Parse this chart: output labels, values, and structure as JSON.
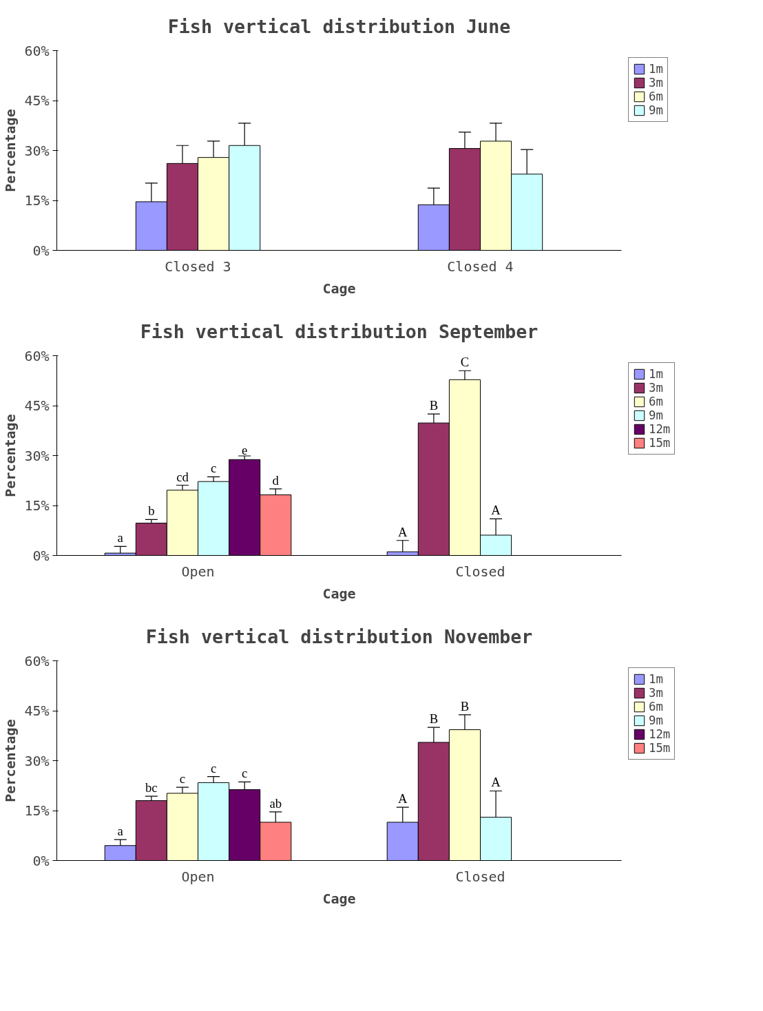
{
  "chart_data": [
    {
      "type": "bar",
      "title": "Fish vertical distribution June",
      "xlabel": "Cage",
      "ylabel": "Percentage",
      "categories": [
        "Closed 3",
        "Closed 4"
      ],
      "ylim": [
        0,
        60
      ],
      "yticks": [
        {
          "value": 0,
          "label": "0%"
        },
        {
          "value": 15,
          "label": "15%"
        },
        {
          "value": 30,
          "label": "30%"
        },
        {
          "value": 45,
          "label": "45%"
        },
        {
          "value": 60,
          "label": "60%"
        }
      ],
      "grid": false,
      "legend": "right",
      "series": [
        {
          "name": "1m",
          "color": "#9999ff",
          "values": [
            14.6,
            13.7
          ],
          "errors": [
            5.6,
            5.0
          ]
        },
        {
          "name": "3m",
          "color": "#993366",
          "values": [
            26.1,
            30.6
          ],
          "errors": [
            5.4,
            4.9
          ]
        },
        {
          "name": "6m",
          "color": "#ffffcc",
          "values": [
            27.9,
            32.8
          ],
          "errors": [
            4.9,
            5.4
          ]
        },
        {
          "name": "9m",
          "color": "#ccffff",
          "values": [
            31.5,
            22.9
          ],
          "errors": [
            6.7,
            7.4
          ]
        }
      ]
    },
    {
      "type": "bar",
      "title": "Fish vertical distribution September",
      "xlabel": "Cage",
      "ylabel": "Percentage",
      "categories": [
        "Open",
        "Closed"
      ],
      "ylim": [
        0,
        60
      ],
      "yticks": [
        {
          "value": 0,
          "label": "0%"
        },
        {
          "value": 15,
          "label": "15%"
        },
        {
          "value": 30,
          "label": "30%"
        },
        {
          "value": 45,
          "label": "45%"
        },
        {
          "value": 60,
          "label": "60%"
        }
      ],
      "grid": false,
      "legend": "right",
      "series": [
        {
          "name": "1m",
          "color": "#9999ff",
          "values": [
            0.7,
            1.1
          ],
          "errors": [
            2.0,
            3.4
          ]
        },
        {
          "name": "3m",
          "color": "#993366",
          "values": [
            9.7,
            39.8
          ],
          "errors": [
            1.1,
            2.7
          ]
        },
        {
          "name": "6m",
          "color": "#ffffcc",
          "values": [
            19.6,
            52.8
          ],
          "errors": [
            1.5,
            2.7
          ]
        },
        {
          "name": "9m",
          "color": "#ccffff",
          "values": [
            22.2,
            6.1
          ],
          "errors": [
            1.4,
            4.9
          ]
        },
        {
          "name": "12m",
          "color": "#660066",
          "values": [
            28.8,
            null
          ],
          "errors": [
            1.1,
            null
          ]
        },
        {
          "name": "15m",
          "color": "#ff8080",
          "values": [
            18.2,
            null
          ],
          "errors": [
            1.8,
            null
          ]
        }
      ],
      "annotations": [
        "a",
        "b",
        "cd",
        "c",
        "e",
        "d",
        "A",
        "B",
        "C",
        "A"
      ]
    },
    {
      "type": "bar",
      "title": "Fish vertical distribution November",
      "xlabel": "Cage",
      "ylabel": "Percentage",
      "categories": [
        "Open",
        "Closed"
      ],
      "ylim": [
        0,
        60
      ],
      "yticks": [
        {
          "value": 0,
          "label": "0%"
        },
        {
          "value": 15,
          "label": "15%"
        },
        {
          "value": 30,
          "label": "30%"
        },
        {
          "value": 45,
          "label": "45%"
        },
        {
          "value": 60,
          "label": "60%"
        }
      ],
      "grid": false,
      "legend": "right",
      "series": [
        {
          "name": "1m",
          "color": "#9999ff",
          "values": [
            4.5,
            11.5
          ],
          "errors": [
            1.8,
            4.5
          ]
        },
        {
          "name": "3m",
          "color": "#993366",
          "values": [
            18.0,
            35.5
          ],
          "errors": [
            1.3,
            4.5
          ]
        },
        {
          "name": "6m",
          "color": "#ffffcc",
          "values": [
            20.2,
            39.3
          ],
          "errors": [
            1.8,
            4.5
          ]
        },
        {
          "name": "9m",
          "color": "#ccffff",
          "values": [
            23.4,
            13.0
          ],
          "errors": [
            1.8,
            7.9
          ]
        },
        {
          "name": "12m",
          "color": "#660066",
          "values": [
            21.3,
            null
          ],
          "errors": [
            2.3,
            null
          ]
        },
        {
          "name": "15m",
          "color": "#ff8080",
          "values": [
            11.5,
            null
          ],
          "errors": [
            3.1,
            null
          ]
        }
      ],
      "annotations": [
        "a",
        "bc",
        "c",
        "c",
        "c",
        "ab",
        "A",
        "B",
        "B",
        "A"
      ]
    }
  ]
}
